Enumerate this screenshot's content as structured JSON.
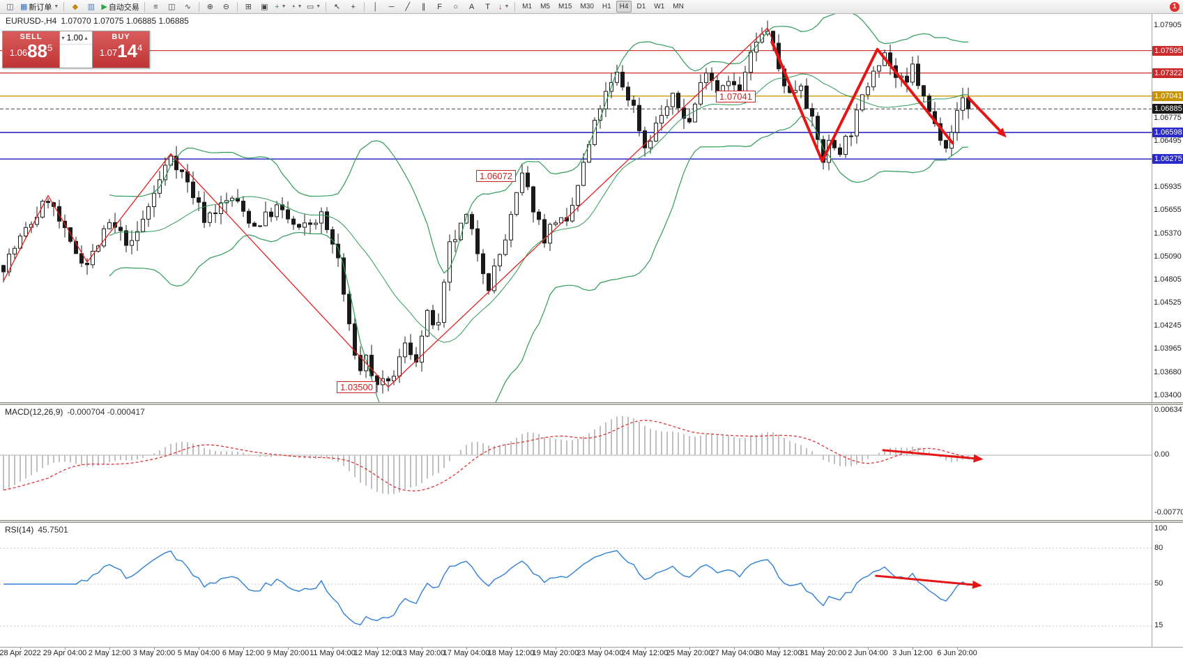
{
  "toolbar": {
    "groups": [
      [
        {
          "name": "chart-type-icon",
          "glyph": "◫",
          "color": "#555555"
        },
        {
          "name": "new-order-button",
          "glyph": "▦",
          "color": "#3a6fb5",
          "label": "新订单",
          "dropdown": true
        }
      ],
      [
        {
          "name": "favorites-icon",
          "glyph": "◆",
          "color": "#c08a00"
        },
        {
          "name": "history-center-icon",
          "glyph": "▥",
          "color": "#4a7abf"
        },
        {
          "name": "autotrading-button",
          "glyph": "▶",
          "color": "#27a844",
          "label": "自动交易"
        }
      ],
      [
        {
          "name": "bars-chart-icon",
          "glyph": "≡",
          "color": "#444444"
        },
        {
          "name": "candlestick-chart-icon",
          "glyph": "◫",
          "color": "#444444"
        },
        {
          "name": "line-chart-icon",
          "glyph": "∿",
          "color": "#444444"
        }
      ],
      [
        {
          "name": "zoom-in-icon",
          "glyph": "⊕",
          "color": "#444444"
        },
        {
          "name": "zoom-out-icon",
          "glyph": "⊖",
          "color": "#444444"
        }
      ],
      [
        {
          "name": "tile-windows-icon",
          "glyph": "⊞",
          "color": "#444444"
        },
        {
          "name": "arrange-windows-icon",
          "glyph": "▣",
          "color": "#444444"
        },
        {
          "name": "indicators-add-button",
          "glyph": "+",
          "color": "#1f9e3e",
          "dropdown": true
        },
        {
          "name": "periods-button",
          "glyph": "◔",
          "color": "#444444",
          "dropdown": true
        },
        {
          "name": "templates-button",
          "glyph": "▭",
          "color": "#444444",
          "dropdown": true
        }
      ],
      [
        {
          "name": "cursor-icon",
          "glyph": "↖",
          "color": "#333333"
        },
        {
          "name": "crosshair-icon",
          "glyph": "+",
          "color": "#333333"
        }
      ],
      [
        {
          "name": "vertical-line-icon",
          "glyph": "│",
          "color": "#333333"
        },
        {
          "name": "horizontal-line-icon",
          "glyph": "─",
          "color": "#333333"
        },
        {
          "name": "trendline-icon",
          "glyph": "╱",
          "color": "#333333"
        },
        {
          "name": "channel-icon",
          "glyph": "∥",
          "color": "#333333"
        },
        {
          "name": "fibonacci-icon",
          "glyph": "F",
          "color": "#333333"
        },
        {
          "name": "shapes-icon",
          "glyph": "○",
          "color": "#333333"
        },
        {
          "name": "text-icon",
          "glyph": "A",
          "color": "#333333"
        },
        {
          "name": "label-icon",
          "glyph": "T",
          "color": "#333333"
        },
        {
          "name": "arrows-tool-icon",
          "glyph": "↓",
          "color": "#cc2222",
          "dropdown": true
        }
      ]
    ],
    "timeframes": [
      "M1",
      "M5",
      "M15",
      "M30",
      "H1",
      "H4",
      "D1",
      "W1",
      "MN"
    ],
    "active_timeframe": "H4",
    "notification_count": "1"
  },
  "chart_info": {
    "symbol_period": "EURUSD-,H4",
    "ohlc": "1.07070 1.07075 1.06885 1.06885"
  },
  "trade_panel": {
    "sell_label": "SELL",
    "buy_label": "BUY",
    "volume": "1.00",
    "bid": {
      "prefix": "1.06",
      "big": "88",
      "sup": "5"
    },
    "ask": {
      "prefix": "1.07",
      "big": "14",
      "sup": "4"
    }
  },
  "chart_data": {
    "type": "candlestick",
    "symbol": "EURUSD",
    "timeframe": "H4",
    "candle_count": 174,
    "current_price": 1.06885,
    "price_path": [
      [
        0,
        1.0498
      ],
      [
        3,
        1.053
      ],
      [
        8,
        1.058
      ],
      [
        12,
        1.0522
      ],
      [
        15,
        1.05
      ],
      [
        19,
        1.0548
      ],
      [
        23,
        1.0522
      ],
      [
        27,
        1.0585
      ],
      [
        30,
        1.0634
      ],
      [
        33,
        1.0598
      ],
      [
        36,
        1.0556
      ],
      [
        41,
        1.058
      ],
      [
        45,
        1.0546
      ],
      [
        49,
        1.0568
      ],
      [
        53,
        1.054
      ],
      [
        57,
        1.0558
      ],
      [
        60,
        1.0506
      ],
      [
        62,
        1.042
      ],
      [
        64,
        1.0368
      ],
      [
        65,
        1.0392
      ],
      [
        66,
        1.036
      ],
      [
        69,
        1.035
      ],
      [
        72,
        1.04
      ],
      [
        74,
        1.0386
      ],
      [
        76,
        1.0436
      ],
      [
        78,
        1.0422
      ],
      [
        80,
        1.052
      ],
      [
        83,
        1.0556
      ],
      [
        85,
        1.0516
      ],
      [
        87,
        1.0474
      ],
      [
        90,
        1.053
      ],
      [
        93,
        1.0607
      ],
      [
        97,
        1.0532
      ],
      [
        99,
        1.0555
      ],
      [
        101,
        1.0545
      ],
      [
        104,
        1.062
      ],
      [
        107,
        1.0692
      ],
      [
        110,
        1.073
      ],
      [
        113,
        1.069
      ],
      [
        115,
        1.0642
      ],
      [
        118,
        1.0682
      ],
      [
        120,
        1.07
      ],
      [
        123,
        1.0672
      ],
      [
        126,
        1.074
      ],
      [
        128,
        1.0712
      ],
      [
        130,
        1.0728
      ],
      [
        132,
        1.0702
      ],
      [
        134,
        1.0756
      ],
      [
        137,
        1.0787
      ],
      [
        139,
        1.0737
      ],
      [
        141,
        1.0706
      ],
      [
        143,
        1.0722
      ],
      [
        145,
        1.0672
      ],
      [
        147,
        1.0627
      ],
      [
        148,
        1.0646
      ],
      [
        150,
        1.064
      ],
      [
        152,
        1.0662
      ],
      [
        154,
        1.07
      ],
      [
        156,
        1.074
      ],
      [
        158,
        1.0758
      ],
      [
        160,
        1.0726
      ],
      [
        162,
        1.0716
      ],
      [
        163,
        1.074
      ],
      [
        165,
        1.07
      ],
      [
        167,
        1.0668
      ],
      [
        169,
        1.0648
      ],
      [
        171,
        1.0682
      ],
      [
        172,
        1.0702
      ],
      [
        173,
        1.06885
      ]
    ],
    "y_axis": {
      "ticks": [
        {
          "t": "1.07905"
        },
        {
          "t": "1.07595",
          "bg": "#cc2a2a"
        },
        {
          "t": "1.07322",
          "bg": "#cc2a2a"
        },
        {
          "t": "1.07041",
          "bg": "#c79400"
        },
        {
          "t": "1.06885",
          "bg": "#1a1a1a"
        },
        {
          "t": "1.06775"
        },
        {
          "t": "1.06598",
          "bg": "#2a2ac8"
        },
        {
          "t": "1.06495"
        },
        {
          "t": "1.06275",
          "bg": "#2a2ac8"
        },
        {
          "t": "1.05935"
        },
        {
          "t": "1.05655"
        },
        {
          "t": "1.05370"
        },
        {
          "t": "1.05090"
        },
        {
          "t": "1.04805"
        },
        {
          "t": "1.04525"
        },
        {
          "t": "1.04245"
        },
        {
          "t": "1.03965"
        },
        {
          "t": "1.03680"
        },
        {
          "t": "1.03400"
        }
      ]
    },
    "x_axis": {
      "labels": [
        "28 Apr 2022",
        "29 Apr 04:00",
        "2 May 12:00",
        "3 May 20:00",
        "5 May 04:00",
        "6 May 12:00",
        "9 May 20:00",
        "11 May 04:00",
        "12 May 12:00",
        "13 May 20:00",
        "17 May 04:00",
        "18 May 12:00",
        "19 May 20:00",
        "23 May 04:00",
        "24 May 12:00",
        "25 May 20:00",
        "27 May 04:00",
        "30 May 12:00",
        "31 May 20:00",
        "2 Jun 04:00",
        "3 Jun 12:00",
        "6 Jun 20:00"
      ],
      "first_label_index": 3,
      "label_step": 8
    },
    "hlines": [
      {
        "price": 1.07595,
        "color": "#cc2a2a",
        "width": 1.2
      },
      {
        "price": 1.07322,
        "color": "#cc2a2a",
        "width": 1.2
      },
      {
        "price": 1.07041,
        "color": "#cc9900",
        "width": 1.4
      },
      {
        "price": 1.06598,
        "color": "#2a2ac8",
        "width": 1.6
      },
      {
        "price": 1.06275,
        "color": "#2a2ac8",
        "width": 1.6
      }
    ],
    "annotations": [
      {
        "text": "1.07041",
        "index": 128,
        "price": 1.07041
      },
      {
        "text": "1.06072",
        "index": 85,
        "price": 1.06072
      },
      {
        "text": "1.03500",
        "index": 60,
        "price": 1.035
      }
    ],
    "trend_lines": {
      "zigzag": [
        [
          0,
          1.0479
        ],
        [
          8,
          1.0583
        ],
        [
          15,
          1.0502
        ],
        [
          30,
          1.0634
        ],
        [
          69,
          1.035
        ],
        [
          137,
          1.0787
        ],
        [
          146.8,
          1.0625
        ],
        [
          156.7,
          1.0761
        ],
        [
          170.3,
          1.0646
        ]
      ],
      "thick_arrows": [
        {
          "points": [
            [
              137.7,
              1.0771
            ],
            [
              146.8,
              1.0625
            ],
            [
              156.7,
              1.0761
            ],
            [
              170.3,
              1.0646
            ]
          ],
          "head": false
        },
        {
          "points": [
            [
              172.9,
              1.0703
            ],
            [
              179.5,
              1.0656
            ]
          ],
          "head": true
        }
      ]
    },
    "indicators": {
      "bollinger": {
        "period": 20,
        "deviation": 2,
        "color": "#2e9b57"
      },
      "macd": {
        "label": "MACD(12,26,9)",
        "values": "-0.000704 -0.000417",
        "axis": [
          "0.006347",
          "0.00",
          "-0.007703"
        ],
        "arrow": {
          "points": [
            [
              157.6,
              0.0007
            ],
            [
              175.2,
              -0.00054
            ]
          ],
          "head": true
        }
      },
      "rsi": {
        "label": "RSI(14)",
        "value": "45.7501",
        "axis": [
          "100",
          "80",
          "50",
          "15"
        ],
        "levels": [
          80,
          50,
          15
        ],
        "arrow": {
          "points": [
            [
              156.3,
              57
            ],
            [
              175,
              49
            ]
          ],
          "head": true
        }
      }
    },
    "colors": {
      "candle_up": "#ffffff",
      "candle_down": "#1a1a1a",
      "candle_border": "#1a1a1a",
      "zigzag": "#e02020",
      "thick_arrow": "#e51515",
      "macd_histogram": "#c0c0c0",
      "macd_signal": "#e03030",
      "rsi_line": "#2f7fd6",
      "sell_buy_red": "#c43a3a"
    }
  }
}
